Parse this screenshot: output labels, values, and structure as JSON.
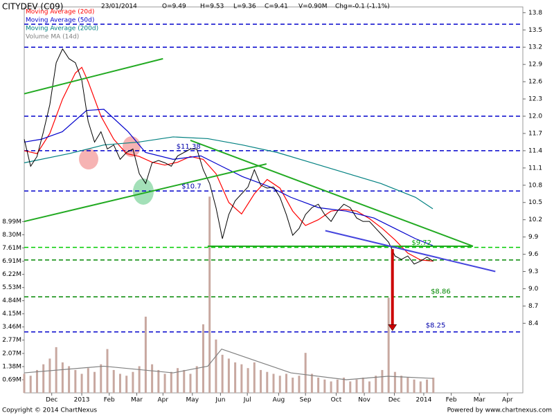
{
  "chart_data": {
    "type": "stock",
    "title": "CITYDEV (C09)",
    "info": [
      "23/01/2014",
      "O=9.49",
      "H=9.53",
      "L=9.36",
      "C=9.41",
      "V=0.90M",
      "Chg=-0.1 (-1.1%)"
    ],
    "footer_left": "Copyright © 2014 ChartNexus",
    "footer_right": "Powered by www.chartnexus.com",
    "price_color": "#000000",
    "x": [
      0,
      1,
      2,
      3,
      4,
      5,
      6,
      7,
      8,
      9,
      10,
      11,
      12,
      13,
      14,
      15,
      16,
      17,
      18,
      19,
      20,
      21,
      22,
      23,
      24,
      25,
      26,
      27,
      28,
      29,
      30,
      31,
      32,
      33,
      34,
      35,
      36,
      37,
      38,
      39,
      40,
      41,
      42,
      43,
      44,
      45,
      46,
      47,
      48,
      49,
      50,
      51,
      52,
      53,
      54,
      55,
      56,
      57,
      58,
      59,
      60,
      61,
      62,
      63,
      64
    ],
    "values": [
      11.6,
      11.13,
      11.3,
      11.73,
      12.2,
      12.93,
      13.17,
      13.0,
      12.93,
      12.63,
      11.91,
      11.55,
      11.73,
      11.43,
      11.5,
      11.25,
      11.37,
      11.43,
      11.0,
      10.83,
      11.19,
      11.23,
      11.19,
      11.13,
      11.31,
      11.37,
      11.43,
      11.43,
      11.07,
      10.83,
      10.41,
      9.87,
      10.29,
      10.53,
      10.65,
      10.77,
      11.07,
      10.8,
      10.75,
      10.77,
      10.59,
      10.29,
      9.93,
      10.05,
      10.29,
      10.41,
      10.47,
      10.29,
      10.17,
      10.35,
      10.47,
      10.41,
      10.23,
      10.17,
      10.17,
      10.05,
      9.93,
      9.81,
      9.57,
      9.51,
      9.57,
      9.43,
      9.48,
      9.55,
      9.48
    ],
    "volume": [
      1.0,
      0.9,
      1.2,
      1.5,
      1.8,
      2.4,
      1.6,
      1.4,
      1.2,
      1.0,
      1.3,
      1.1,
      1.5,
      2.3,
      1.2,
      1.0,
      0.9,
      1.1,
      1.4,
      4.0,
      1.5,
      1.2,
      1.0,
      1.1,
      1.3,
      1.2,
      1.0,
      1.4,
      3.6,
      10.3,
      2.8,
      2.0,
      1.8,
      1.6,
      1.5,
      1.3,
      1.6,
      1.2,
      1.1,
      1.0,
      0.9,
      1.0,
      0.8,
      0.9,
      2.1,
      1.0,
      0.8,
      0.7,
      0.6,
      0.7,
      0.8,
      0.6,
      0.7,
      0.8,
      0.6,
      0.9,
      1.2,
      5.0,
      1.1,
      0.9,
      0.8,
      0.7,
      0.6,
      0.7,
      0.8
    ],
    "volume_color": "#c8a8a0",
    "series": [
      {
        "name": "Moving Average (20d)",
        "color": "#ff0000",
        "x": [
          0,
          2,
          4,
          6,
          8,
          9,
          10,
          12,
          14,
          16,
          18,
          20,
          22,
          24,
          26,
          28,
          30,
          32,
          34,
          36,
          38,
          40,
          42,
          44,
          46,
          48,
          50,
          52,
          54,
          56,
          58,
          60,
          62,
          64
        ],
        "values": [
          11.4,
          11.35,
          11.7,
          12.3,
          12.75,
          12.85,
          12.6,
          12.0,
          11.6,
          11.35,
          11.3,
          11.2,
          11.15,
          11.2,
          11.3,
          11.25,
          11.0,
          10.5,
          10.3,
          10.65,
          10.9,
          10.75,
          10.35,
          10.1,
          10.2,
          10.35,
          10.38,
          10.35,
          10.22,
          10.05,
          9.85,
          9.62,
          9.5,
          9.48
        ]
      },
      {
        "name": "Moving Average (50d)",
        "color": "#0000cc",
        "x": [
          0,
          2.7,
          5.96,
          9.75,
          12.46,
          16.25,
          18.96,
          23.29,
          27.63,
          30.88,
          34.13,
          38.46,
          41.71,
          46.05,
          50.38,
          54.71,
          57.96,
          61.21,
          63.92
        ],
        "values": [
          11.55,
          11.6,
          11.73,
          12.1,
          12.12,
          11.73,
          11.37,
          11.25,
          11.31,
          11.13,
          10.95,
          10.77,
          10.59,
          10.41,
          10.35,
          10.23,
          10.05,
          9.87,
          9.75
        ]
      },
      {
        "name": "Moving Average (200d)",
        "color": "#008080",
        "x": [
          0,
          7.04,
          12.46,
          17.88,
          23.29,
          28.71,
          34.13,
          39.55,
          44.96,
          50.38,
          55.8,
          61.21,
          63.92
        ],
        "values": [
          11.19,
          11.35,
          11.5,
          11.55,
          11.64,
          11.61,
          11.5,
          11.37,
          11.19,
          11.01,
          10.83,
          10.59,
          10.39
        ]
      },
      {
        "name": "Volume MA (14d)",
        "color": "#808080",
        "axis": "volume",
        "x": [
          0,
          12.46,
          23.29,
          28.71,
          30.88,
          35.21,
          41.71,
          50.38,
          56.88,
          63.92
        ],
        "values": [
          1.05,
          1.4,
          1.05,
          1.4,
          2.3,
          1.8,
          1.05,
          0.69,
          0.87,
          0.76
        ]
      }
    ],
    "xlim": [
      0,
      78
    ],
    "xticks": [
      {
        "value": 4.3,
        "label": "Dec"
      },
      {
        "value": 9,
        "label": "2013"
      },
      {
        "value": 13.3,
        "label": "Feb"
      },
      {
        "value": 17.6,
        "label": "Mar"
      },
      {
        "value": 21.7,
        "label": "Apr"
      },
      {
        "value": 26.3,
        "label": "May"
      },
      {
        "value": 30.7,
        "label": "Jun"
      },
      {
        "value": 34.9,
        "label": "Jul"
      },
      {
        "value": 39.8,
        "label": "Aug"
      },
      {
        "value": 44,
        "label": "Sep"
      },
      {
        "value": 48.8,
        "label": "Oct"
      },
      {
        "value": 53.2,
        "label": "Nov"
      },
      {
        "value": 57.9,
        "label": "Dec"
      },
      {
        "value": 62.5,
        "label": "2014"
      },
      {
        "value": 66.8,
        "label": "Feb"
      },
      {
        "value": 71.2,
        "label": "Mar"
      },
      {
        "value": 75.6,
        "label": "Apr"
      }
    ],
    "ylim": [
      7.19,
      13.9
    ],
    "yticks": [
      13.8,
      13.5,
      13.2,
      12.9,
      12.6,
      12.3,
      {
        "value": 12.0,
        "label": "12.0"
      },
      11.7,
      11.4,
      11.1,
      10.8,
      10.5,
      10.2,
      9.9,
      9.6,
      9.3,
      {
        "value": 9.0,
        "label": "9.0"
      },
      8.7,
      8.4
    ],
    "volume_ylim": [
      0,
      20.26
    ],
    "volume_ticks": [
      {
        "value": 8.99,
        "label": "8.99M"
      },
      {
        "value": 8.3,
        "label": "8.30M"
      },
      {
        "value": 7.61,
        "label": "7.61M"
      },
      {
        "value": 6.91,
        "label": "6.91M"
      },
      {
        "value": 6.22,
        "label": "6.22M"
      },
      {
        "value": 5.53,
        "label": "5.53M"
      },
      {
        "value": 4.84,
        "label": "4.84M"
      },
      {
        "value": 4.15,
        "label": "4.15M"
      },
      {
        "value": 3.46,
        "label": "3.46M"
      },
      {
        "value": 2.77,
        "label": "2.77M"
      },
      {
        "value": 2.07,
        "label": "2.07M"
      },
      {
        "value": 1.38,
        "label": "1.38M"
      },
      {
        "value": 0.69,
        "label": "0.69M"
      }
    ],
    "levels": [
      {
        "value": 13.6,
        "color": "#0000cc"
      },
      {
        "value": 13.2,
        "color": "#0000cc"
      },
      {
        "value": 12.0,
        "color": "#0000cc"
      },
      {
        "value": 11.4,
        "color": "#0000cc"
      },
      {
        "value": 10.7,
        "color": "#0000cc"
      },
      {
        "value": 9.72,
        "color": "#00cc00"
      },
      {
        "value": 9.5,
        "color": "#008800"
      },
      {
        "value": 8.86,
        "color": "#008800"
      },
      {
        "value": 8.25,
        "color": "#0000cc"
      }
    ],
    "trendlines": [
      {
        "x": [
          0,
          21.7
        ],
        "y": [
          12.39,
          13.0
        ],
        "color": "#22aa22"
      },
      {
        "x": [
          0,
          37.9
        ],
        "y": [
          10.17,
          11.17
        ],
        "color": "#22aa22"
      },
      {
        "x": [
          26,
          70.2
        ],
        "y": [
          11.58,
          9.74
        ],
        "color": "#22aa22"
      },
      {
        "x": [
          28.7,
          70.2
        ],
        "y": [
          9.74,
          9.74
        ],
        "color": "#22aa22"
      },
      {
        "x": [
          47.1,
          73.7
        ],
        "y": [
          10.01,
          9.3
        ],
        "color": "#4444dd"
      }
    ],
    "arrow": {
      "x": 57.6,
      "y": [
        9.69,
        8.27
      ],
      "color": "#cc0000"
    },
    "annotations": [
      {
        "text": "$11.38",
        "x": 23.8,
        "y": 11.47,
        "color": "#0000aa"
      },
      {
        "text": "$10.7",
        "x": 24.6,
        "y": 10.78,
        "color": "#0000aa"
      },
      {
        "text": "$9.72",
        "x": 60.6,
        "y": 9.8,
        "color": "#00aa00"
      },
      {
        "text": "$8.86",
        "x": 63.6,
        "y": 8.95,
        "color": "#008800"
      },
      {
        "text": "$8.25",
        "x": 62.8,
        "y": 8.36,
        "color": "#0000aa"
      }
    ]
  }
}
